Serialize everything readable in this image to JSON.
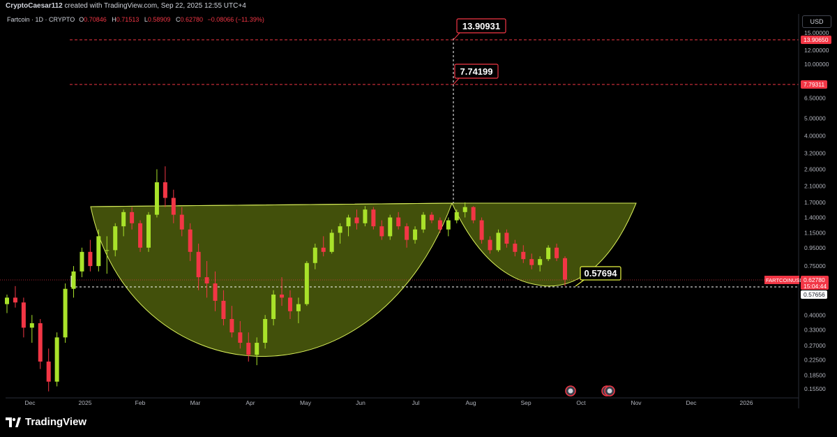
{
  "header": {
    "author": "CryptoCaesar112",
    "created_text": "created with TradingView.com, Sep 22, 2025 12:55 UTC+4"
  },
  "legend": {
    "symbol": "Fartcoin · 1D · CRYPTO",
    "open_label": "O",
    "open": "0.70846",
    "high_label": "H",
    "high": "0.71513",
    "low_label": "L",
    "low": "0.58909",
    "close_label": "C",
    "close": "0.62780",
    "change": "−0.08066 (−11.39%)"
  },
  "currency": "USD",
  "footer": {
    "brand": "TradingView"
  },
  "colors": {
    "up": "#a9e22a",
    "down": "#f23645",
    "pattern_fill": "#4e5e0d",
    "pattern_stroke": "#d9ef5a",
    "annotation": "#f23645",
    "callout_yellow": "#e9f542"
  },
  "chart_data": {
    "type": "candlestick",
    "y_scale": "log",
    "ylim": [
      0.14,
      17
    ],
    "x_ticks": [
      "Dec",
      "2025",
      "Feb",
      "Mar",
      "Apr",
      "May",
      "Jun",
      "Jul",
      "Aug",
      "Sep",
      "Oct",
      "Nov",
      "Dec",
      "2026"
    ],
    "y_ticks": [
      "15.00000",
      "12.00000",
      "10.00000",
      "6.50000",
      "5.00000",
      "4.00000",
      "3.20000",
      "2.60000",
      "2.10000",
      "1.70000",
      "1.40000",
      "1.15000",
      "0.95000",
      "0.75000",
      "0.40000",
      "0.33000",
      "0.27000",
      "0.22500",
      "0.18500",
      "0.15500"
    ],
    "pattern": "cup and handle",
    "annotations": {
      "target1": "13.90931",
      "target2": "7.74199",
      "support": "0.57694"
    },
    "price_labels": {
      "target1_axis": "13.90650",
      "target2_axis": "7.79311",
      "symbol_label": "FARTCOINUSD",
      "last_price": "0.62780",
      "countdown": "15:04:44",
      "support_axis": "0.57656"
    },
    "candles": [
      [
        0.46,
        0.52,
        0.41,
        0.5
      ],
      [
        0.5,
        0.58,
        0.44,
        0.47
      ],
      [
        0.47,
        0.5,
        0.3,
        0.34
      ],
      [
        0.34,
        0.4,
        0.28,
        0.36
      ],
      [
        0.36,
        0.38,
        0.2,
        0.22
      ],
      [
        0.22,
        0.26,
        0.15,
        0.17
      ],
      [
        0.17,
        0.32,
        0.16,
        0.3
      ],
      [
        0.3,
        0.6,
        0.28,
        0.56
      ],
      [
        0.56,
        0.75,
        0.5,
        0.7
      ],
      [
        0.7,
        0.95,
        0.65,
        0.9
      ],
      [
        0.9,
        1.05,
        0.7,
        0.75
      ],
      [
        0.75,
        1.2,
        0.7,
        1.1
      ],
      [
        0.92,
        1.1,
        0.68,
        0.92
      ],
      [
        0.92,
        1.3,
        0.85,
        1.25
      ],
      [
        1.25,
        1.55,
        1.1,
        1.5
      ],
      [
        1.5,
        1.6,
        1.2,
        1.3
      ],
      [
        1.3,
        1.35,
        0.9,
        0.95
      ],
      [
        0.95,
        1.5,
        0.9,
        1.45
      ],
      [
        1.45,
        2.6,
        1.4,
        2.2
      ],
      [
        2.2,
        2.7,
        1.6,
        1.8
      ],
      [
        1.8,
        2.0,
        1.3,
        1.45
      ],
      [
        1.45,
        1.6,
        1.1,
        1.2
      ],
      [
        1.2,
        1.3,
        0.8,
        0.9
      ],
      [
        0.9,
        1.0,
        0.55,
        0.65
      ],
      [
        0.65,
        0.8,
        0.5,
        0.6
      ],
      [
        0.6,
        0.7,
        0.42,
        0.48
      ],
      [
        0.48,
        0.55,
        0.35,
        0.38
      ],
      [
        0.38,
        0.45,
        0.3,
        0.32
      ],
      [
        0.32,
        0.37,
        0.26,
        0.28
      ],
      [
        0.28,
        0.32,
        0.22,
        0.24
      ],
      [
        0.24,
        0.3,
        0.21,
        0.28
      ],
      [
        0.28,
        0.4,
        0.26,
        0.38
      ],
      [
        0.38,
        0.55,
        0.35,
        0.52
      ],
      [
        0.52,
        0.65,
        0.45,
        0.5
      ],
      [
        0.5,
        0.55,
        0.38,
        0.42
      ],
      [
        0.42,
        0.5,
        0.36,
        0.46
      ],
      [
        0.46,
        0.8,
        0.45,
        0.78
      ],
      [
        0.78,
        1.0,
        0.72,
        0.95
      ],
      [
        0.95,
        1.1,
        0.85,
        0.9
      ],
      [
        0.9,
        1.2,
        0.88,
        1.15
      ],
      [
        1.15,
        1.3,
        1.0,
        1.25
      ],
      [
        1.25,
        1.45,
        1.1,
        1.4
      ],
      [
        1.4,
        1.55,
        1.2,
        1.3
      ],
      [
        1.3,
        1.62,
        1.25,
        1.55
      ],
      [
        1.55,
        1.6,
        1.2,
        1.25
      ],
      [
        1.25,
        1.35,
        1.05,
        1.1
      ],
      [
        1.1,
        1.45,
        1.05,
        1.4
      ],
      [
        1.4,
        1.5,
        1.2,
        1.25
      ],
      [
        1.25,
        1.3,
        0.95,
        1.05
      ],
      [
        1.05,
        1.25,
        1.0,
        1.2
      ],
      [
        1.2,
        1.5,
        1.15,
        1.45
      ],
      [
        1.45,
        1.5,
        1.3,
        1.35
      ],
      [
        1.35,
        1.4,
        1.15,
        1.2
      ],
      [
        1.2,
        1.4,
        1.1,
        1.35
      ],
      [
        1.35,
        1.55,
        1.3,
        1.5
      ],
      [
        1.5,
        1.7,
        1.4,
        1.6
      ],
      [
        1.6,
        1.62,
        1.3,
        1.35
      ],
      [
        1.35,
        1.4,
        1.0,
        1.05
      ],
      [
        1.05,
        1.1,
        0.88,
        0.92
      ],
      [
        0.92,
        1.2,
        0.9,
        1.15
      ],
      [
        1.15,
        1.2,
        0.95,
        1.0
      ],
      [
        1.0,
        1.05,
        0.85,
        0.9
      ],
      [
        0.9,
        0.98,
        0.78,
        0.82
      ],
      [
        0.82,
        0.88,
        0.72,
        0.76
      ],
      [
        0.76,
        0.85,
        0.7,
        0.82
      ],
      [
        0.82,
        0.98,
        0.8,
        0.95
      ],
      [
        0.95,
        1.0,
        0.8,
        0.83
      ],
      [
        0.83,
        0.85,
        0.58,
        0.63
      ]
    ]
  }
}
